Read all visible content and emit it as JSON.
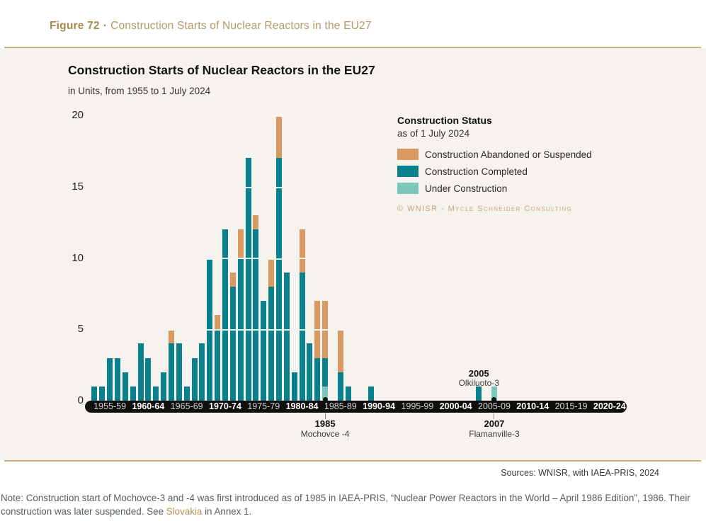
{
  "colors": {
    "completed": "#0A808C",
    "abandoned_or_suspended": "#D99A62",
    "under_construction": "#7CC6C0",
    "panel_background": "#F6F2ED",
    "axis_bar": "#0F0F0F",
    "accent_gold": "#B5935B",
    "rule_gold": "#C9B283"
  },
  "figure_header": {
    "label": "Figure 72",
    "separator": "·",
    "title": "Construction Starts of Nuclear Reactors in the EU27"
  },
  "chart": {
    "title": "Construction Starts of Nuclear Reactors in the EU27",
    "subtitle": "in Units, from 1955 to 1 July 2024",
    "legend": {
      "title": "Construction Status",
      "subtitle": "as of 1 July 2024",
      "items": [
        {
          "key": "abandoned_or_suspended",
          "label": "Construction Abandoned or Suspended",
          "color": "#D99A62"
        },
        {
          "key": "completed",
          "label": "Construction Completed",
          "color": "#0A808C"
        },
        {
          "key": "under_construction",
          "label": "Under Construction",
          "color": "#7CC6C0"
        }
      ]
    },
    "copyright": "© WNISR - Mycle Schneider Consulting",
    "x_groups": [
      {
        "label": "1955-59",
        "bold": false
      },
      {
        "label": "1960-64",
        "bold": true
      },
      {
        "label": "1965-69",
        "bold": false
      },
      {
        "label": "1970-74",
        "bold": true
      },
      {
        "label": "1975-79",
        "bold": false
      },
      {
        "label": "1980-84",
        "bold": true
      },
      {
        "label": "1985-89",
        "bold": false
      },
      {
        "label": "1990-94",
        "bold": true
      },
      {
        "label": "1995-99",
        "bold": false
      },
      {
        "label": "2000-04",
        "bold": true
      },
      {
        "label": "2005-09",
        "bold": false
      },
      {
        "label": "2010-14",
        "bold": true
      },
      {
        "label": "2015-19",
        "bold": false
      },
      {
        "label": "2020-24",
        "bold": true
      }
    ]
  },
  "chart_data": {
    "type": "bar",
    "stacked": true,
    "title": "Construction Starts of Nuclear Reactors in the EU27",
    "subtitle": "in Units, from 1955 to 1 July 2024",
    "ylabel": "Units",
    "xlabel": "",
    "ylim": [
      0,
      20
    ],
    "y_ticks": [
      0,
      5,
      10,
      15,
      20
    ],
    "x_range": [
      1955,
      2024
    ],
    "grid": "white lines over bars at 5/10/15/20",
    "legend_position": "right",
    "stack_order_bottom_to_top": [
      "under_construction",
      "completed",
      "abandoned_or_suspended"
    ],
    "series_names": [
      "Construction Completed",
      "Construction Abandoned or Suspended",
      "Under Construction"
    ],
    "bars": [
      {
        "year": 1955,
        "completed": 1,
        "abandoned_or_suspended": 0,
        "under_construction": 0
      },
      {
        "year": 1956,
        "completed": 1,
        "abandoned_or_suspended": 0,
        "under_construction": 0
      },
      {
        "year": 1957,
        "completed": 3,
        "abandoned_or_suspended": 0,
        "under_construction": 0
      },
      {
        "year": 1958,
        "completed": 3,
        "abandoned_or_suspended": 0,
        "under_construction": 0
      },
      {
        "year": 1959,
        "completed": 2,
        "abandoned_or_suspended": 0,
        "under_construction": 0
      },
      {
        "year": 1960,
        "completed": 1,
        "abandoned_or_suspended": 0,
        "under_construction": 0
      },
      {
        "year": 1961,
        "completed": 4,
        "abandoned_or_suspended": 0,
        "under_construction": 0
      },
      {
        "year": 1962,
        "completed": 3,
        "abandoned_or_suspended": 0,
        "under_construction": 0
      },
      {
        "year": 1963,
        "completed": 1,
        "abandoned_or_suspended": 0,
        "under_construction": 0
      },
      {
        "year": 1964,
        "completed": 2,
        "abandoned_or_suspended": 0,
        "under_construction": 0
      },
      {
        "year": 1965,
        "completed": 4,
        "abandoned_or_suspended": 1,
        "under_construction": 0
      },
      {
        "year": 1966,
        "completed": 4,
        "abandoned_or_suspended": 0,
        "under_construction": 0
      },
      {
        "year": 1967,
        "completed": 1,
        "abandoned_or_suspended": 0,
        "under_construction": 0
      },
      {
        "year": 1968,
        "completed": 3,
        "abandoned_or_suspended": 0,
        "under_construction": 0
      },
      {
        "year": 1969,
        "completed": 4,
        "abandoned_or_suspended": 0,
        "under_construction": 0
      },
      {
        "year": 1970,
        "completed": 10,
        "abandoned_or_suspended": 0,
        "under_construction": 0
      },
      {
        "year": 1971,
        "completed": 5,
        "abandoned_or_suspended": 1,
        "under_construction": 0
      },
      {
        "year": 1972,
        "completed": 12,
        "abandoned_or_suspended": 0,
        "under_construction": 0
      },
      {
        "year": 1973,
        "completed": 8,
        "abandoned_or_suspended": 1,
        "under_construction": 0
      },
      {
        "year": 1974,
        "completed": 10,
        "abandoned_or_suspended": 2,
        "under_construction": 0
      },
      {
        "year": 1975,
        "completed": 17,
        "abandoned_or_suspended": 0,
        "under_construction": 0
      },
      {
        "year": 1976,
        "completed": 12,
        "abandoned_or_suspended": 1,
        "under_construction": 0
      },
      {
        "year": 1977,
        "completed": 7,
        "abandoned_or_suspended": 0,
        "under_construction": 0
      },
      {
        "year": 1978,
        "completed": 8,
        "abandoned_or_suspended": 2,
        "under_construction": 0
      },
      {
        "year": 1979,
        "completed": 17,
        "abandoned_or_suspended": 3,
        "under_construction": 0
      },
      {
        "year": 1980,
        "completed": 9,
        "abandoned_or_suspended": 0,
        "under_construction": 0
      },
      {
        "year": 1981,
        "completed": 2,
        "abandoned_or_suspended": 0,
        "under_construction": 0
      },
      {
        "year": 1982,
        "completed": 9,
        "abandoned_or_suspended": 3,
        "under_construction": 0
      },
      {
        "year": 1983,
        "completed": 4,
        "abandoned_or_suspended": 0,
        "under_construction": 0
      },
      {
        "year": 1984,
        "completed": 3,
        "abandoned_or_suspended": 4,
        "under_construction": 0
      },
      {
        "year": 1985,
        "completed": 2,
        "abandoned_or_suspended": 4,
        "under_construction": 1
      },
      {
        "year": 1987,
        "completed": 2,
        "abandoned_or_suspended": 3,
        "under_construction": 0
      },
      {
        "year": 1988,
        "completed": 1,
        "abandoned_or_suspended": 0,
        "under_construction": 0
      },
      {
        "year": 1991,
        "completed": 1,
        "abandoned_or_suspended": 0,
        "under_construction": 0
      },
      {
        "year": 2005,
        "completed": 1,
        "abandoned_or_suspended": 0,
        "under_construction": 0
      },
      {
        "year": 2007,
        "completed": 0,
        "abandoned_or_suspended": 0,
        "under_construction": 1
      }
    ],
    "annotations": [
      {
        "year": 1985,
        "label": "1985",
        "sublabel": "Mochovce -4",
        "placement": "below-axis",
        "marker": "dot-at-bar-base"
      },
      {
        "year": 2005,
        "label": "2005",
        "sublabel": "Olkiluoto-3",
        "placement": "above-bar",
        "marker": "none"
      },
      {
        "year": 2007,
        "label": "2007",
        "sublabel": "Flamanville-3",
        "placement": "below-axis",
        "marker": "dot-at-bar-base"
      }
    ]
  },
  "footer": {
    "sources": "Sources: WNISR, with IAEA-PRIS, 2024",
    "note_prefix": "Note: Construction start of Mochovce-3 and -4 was first introduced as of 1985 in IAEA-PRIS, “Nuclear Power Reactors in the World – April 1986 Edition”, 1986. Their construction was later suspended. See ",
    "note_link": "Slovakia",
    "note_suffix": " in Annex 1."
  }
}
